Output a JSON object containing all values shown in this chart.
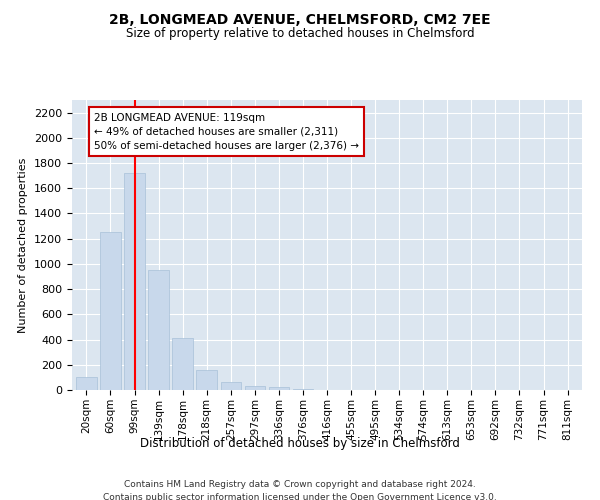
{
  "title": "2B, LONGMEAD AVENUE, CHELMSFORD, CM2 7EE",
  "subtitle": "Size of property relative to detached houses in Chelmsford",
  "xlabel": "Distribution of detached houses by size in Chelmsford",
  "ylabel": "Number of detached properties",
  "bar_color": "#c8d8eb",
  "bar_edge_color": "#a8c0d8",
  "categories": [
    "20sqm",
    "60sqm",
    "99sqm",
    "139sqm",
    "178sqm",
    "218sqm",
    "257sqm",
    "297sqm",
    "336sqm",
    "376sqm",
    "416sqm",
    "455sqm",
    "495sqm",
    "534sqm",
    "574sqm",
    "613sqm",
    "653sqm",
    "692sqm",
    "732sqm",
    "771sqm",
    "811sqm"
  ],
  "values": [
    100,
    1255,
    1720,
    950,
    410,
    155,
    60,
    35,
    20,
    5,
    2,
    1,
    1,
    0,
    0,
    0,
    0,
    0,
    0,
    0,
    0
  ],
  "ylim": [
    0,
    2300
  ],
  "yticks": [
    0,
    200,
    400,
    600,
    800,
    1000,
    1200,
    1400,
    1600,
    1800,
    2000,
    2200
  ],
  "vline_x_idx": 2,
  "annotation_text": "2B LONGMEAD AVENUE: 119sqm\n← 49% of detached houses are smaller (2,311)\n50% of semi-detached houses are larger (2,376) →",
  "annotation_box_color": "#ffffff",
  "annotation_box_edge": "#cc0000",
  "footer": "Contains HM Land Registry data © Crown copyright and database right 2024.\nContains public sector information licensed under the Open Government Licence v3.0.",
  "bg_color": "#ffffff",
  "plot_bg_color": "#dce6f0"
}
